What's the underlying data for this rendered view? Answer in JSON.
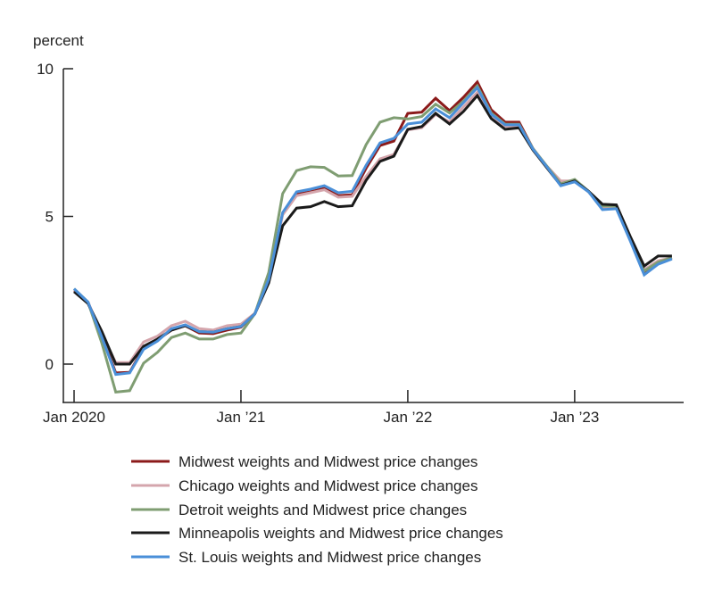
{
  "chart_data": {
    "type": "line",
    "ylabel": "percent",
    "ylim": [
      -1.3,
      10
    ],
    "yticks": [
      0,
      5,
      10
    ],
    "x_start": "Jan 2020",
    "x_count": 44,
    "xtick_labels": [
      {
        "month_index": 0,
        "label": "Jan 2020"
      },
      {
        "month_index": 12,
        "label": "Jan ’21"
      },
      {
        "month_index": 24,
        "label": "Jan ’22"
      },
      {
        "month_index": 36,
        "label": "Jan ’23"
      }
    ],
    "legend_placement": "bottom",
    "series": [
      {
        "name": "Midwest weights and Midwest price changes",
        "color": "#8b1a1a",
        "values": [
          2.5,
          2.1,
          0.95,
          -0.3,
          -0.28,
          0.55,
          0.82,
          1.15,
          1.3,
          1.05,
          1.03,
          1.15,
          1.25,
          1.7,
          2.85,
          5.1,
          5.75,
          5.83,
          5.95,
          5.7,
          5.73,
          6.63,
          7.4,
          7.55,
          8.49,
          8.53,
          9.0,
          8.58,
          9.03,
          9.55,
          8.61,
          8.19,
          8.19,
          7.3,
          6.68,
          6.1,
          6.2,
          5.83,
          5.3,
          5.3,
          4.2,
          3.1,
          3.45,
          3.6
        ]
      },
      {
        "name": "Chicago weights and Midwest price changes",
        "color": "#d4a5ac",
        "values": [
          2.5,
          2.1,
          1.0,
          0.05,
          0.05,
          0.75,
          0.95,
          1.3,
          1.45,
          1.2,
          1.15,
          1.3,
          1.35,
          1.72,
          2.85,
          5.05,
          5.7,
          5.8,
          5.9,
          5.65,
          5.68,
          6.35,
          6.95,
          7.1,
          7.93,
          8.0,
          8.45,
          8.2,
          8.7,
          9.2,
          8.4,
          8.05,
          8.05,
          7.3,
          6.7,
          6.2,
          6.2,
          5.85,
          5.3,
          5.3,
          4.2,
          3.2,
          3.5,
          3.6
        ]
      },
      {
        "name": "Detroit weights and Midwest price changes",
        "color": "#7f9d72",
        "values": [
          2.55,
          2.1,
          0.7,
          -0.95,
          -0.9,
          0.03,
          0.4,
          0.9,
          1.05,
          0.85,
          0.85,
          1.0,
          1.05,
          1.7,
          3.1,
          5.77,
          6.55,
          6.68,
          6.66,
          6.37,
          6.38,
          7.43,
          8.19,
          8.34,
          8.3,
          8.38,
          8.8,
          8.5,
          8.9,
          9.42,
          8.5,
          8.12,
          8.12,
          7.3,
          6.7,
          6.1,
          6.25,
          5.85,
          5.35,
          5.35,
          4.22,
          3.15,
          3.45,
          3.6
        ]
      },
      {
        "name": "Minneapolis weights and Midwest price changes",
        "color": "#1a1a1a",
        "values": [
          2.45,
          2.05,
          1.1,
          0.0,
          0.0,
          0.6,
          0.85,
          1.15,
          1.3,
          1.1,
          1.08,
          1.2,
          1.27,
          1.7,
          2.75,
          4.68,
          5.28,
          5.33,
          5.5,
          5.33,
          5.36,
          6.22,
          6.86,
          7.04,
          7.95,
          8.04,
          8.49,
          8.13,
          8.55,
          9.09,
          8.31,
          7.95,
          8.0,
          7.25,
          6.65,
          6.05,
          6.2,
          5.85,
          5.41,
          5.39,
          4.32,
          3.32,
          3.66,
          3.66
        ]
      },
      {
        "name": "St. Louis weights and Midwest price changes",
        "color": "#4a8fd8",
        "values": [
          2.55,
          2.1,
          0.9,
          -0.35,
          -0.3,
          0.5,
          0.78,
          1.2,
          1.33,
          1.1,
          1.08,
          1.2,
          1.27,
          1.7,
          2.87,
          5.13,
          5.83,
          5.92,
          6.04,
          5.8,
          5.85,
          6.73,
          7.49,
          7.64,
          8.13,
          8.19,
          8.64,
          8.34,
          8.85,
          9.36,
          8.46,
          8.1,
          8.1,
          7.28,
          6.68,
          6.04,
          6.17,
          5.83,
          5.23,
          5.26,
          4.17,
          3.02,
          3.38,
          3.56
        ]
      }
    ]
  }
}
